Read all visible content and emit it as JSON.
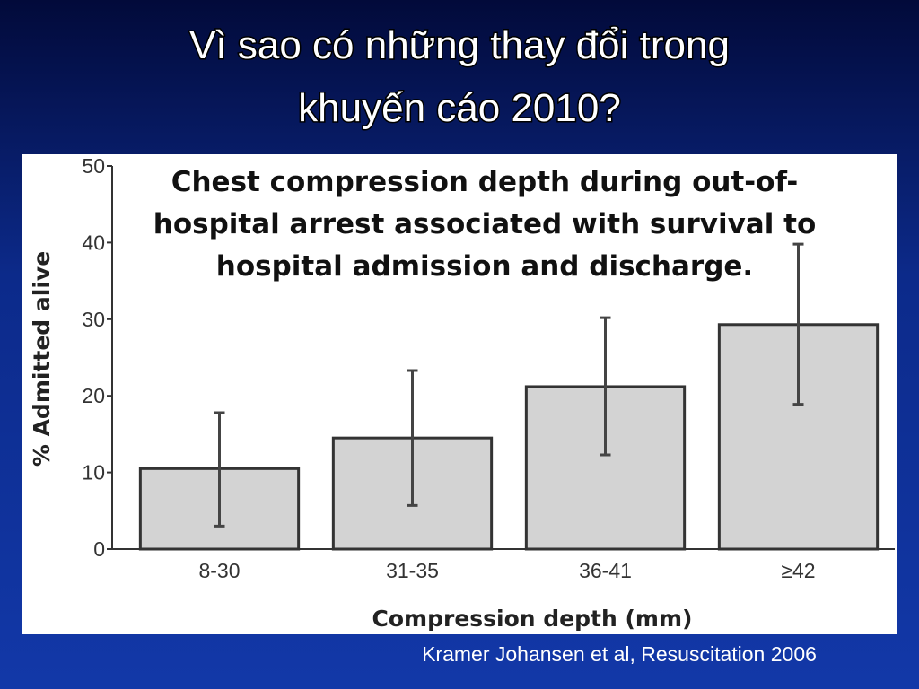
{
  "slide": {
    "title": [
      "Vì sao có những thay đổi trong",
      "khuyến cáo 2010?"
    ],
    "source": "Kramer Johansen et al, Resuscitation 2006"
  },
  "chart_data": {
    "type": "bar",
    "title": [
      "Chest compression depth during out-of-",
      "hospital arrest associated with survival to",
      "hospital admission and discharge."
    ],
    "x_label": "Compression depth (mm)",
    "y_label": "% Admitted alive",
    "categories": [
      "8-30",
      "31-35",
      "36-41",
      "≥42"
    ],
    "values": [
      10.5,
      14.5,
      21.2,
      29.3
    ],
    "ci_low": [
      3,
      5.7,
      12.3,
      18.9
    ],
    "ci_high": [
      17.8,
      23.3,
      30.2,
      39.8
    ],
    "color": "#d3d3d3",
    "ylim": [
      0,
      50
    ],
    "yticks": [
      0,
      10,
      20,
      30,
      40,
      50
    ]
  }
}
